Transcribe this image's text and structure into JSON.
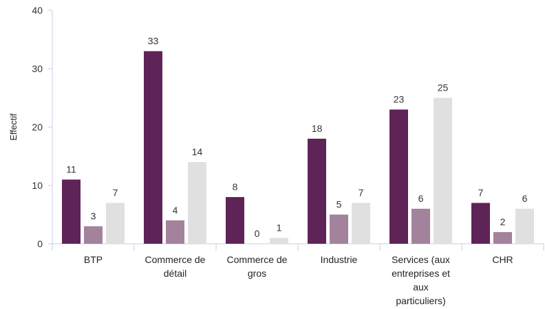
{
  "chart_data": {
    "type": "bar",
    "ylabel": "Effectif",
    "xlabel": "",
    "ylim": [
      0,
      40
    ],
    "yticks": [
      0,
      10,
      20,
      30,
      40
    ],
    "grid": false,
    "categories": [
      [
        "BTP"
      ],
      [
        "Commerce de",
        "détail"
      ],
      [
        "Commerce de",
        "gros"
      ],
      [
        "Industrie"
      ],
      [
        "Services (aux",
        "entreprises et",
        "aux",
        "particuliers)"
      ],
      [
        "CHR"
      ]
    ],
    "series": [
      {
        "values": [
          11,
          33,
          8,
          18,
          23,
          7
        ],
        "color": "#5f2457"
      },
      {
        "values": [
          3,
          4,
          0,
          5,
          6,
          2
        ],
        "color": "#a3829b"
      },
      {
        "values": [
          7,
          14,
          1,
          7,
          25,
          6
        ],
        "color": "#e0e0e0"
      }
    ]
  }
}
